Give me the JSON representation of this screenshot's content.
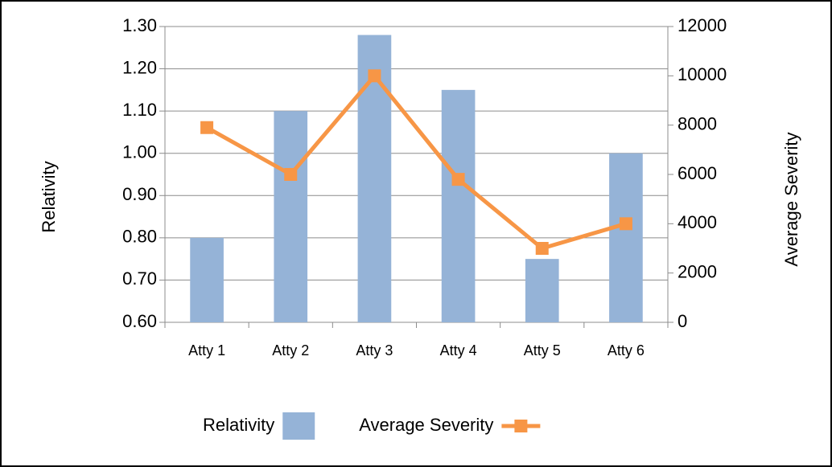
{
  "chart_data": {
    "type": "combo",
    "categories": [
      "Atty 1",
      "Atty 2",
      "Atty 3",
      "Atty 4",
      "Atty 5",
      "Atty 6"
    ],
    "y_label": "Relativity",
    "y2_label": "Average Severity",
    "series": [
      {
        "name": "Relativity",
        "type": "bar",
        "color": "#95b3d7",
        "values": [
          0.8,
          1.1,
          1.28,
          1.15,
          0.75,
          1.0
        ]
      },
      {
        "name": "Average Severity",
        "type": "line",
        "axis": "y2",
        "color": "#f79646",
        "values": [
          7900,
          6000,
          10000,
          5800,
          3000,
          4000
        ]
      }
    ],
    "ylim": [
      0.6,
      1.3
    ],
    "yticks": [
      {
        "value": 0.6,
        "label": "0.60"
      },
      {
        "value": 0.7,
        "label": "0.70"
      },
      {
        "value": 0.8,
        "label": "0.80"
      },
      {
        "value": 0.9,
        "label": "0.90"
      },
      {
        "value": 1.0,
        "label": "1.00"
      },
      {
        "value": 1.1,
        "label": "1.10"
      },
      {
        "value": 1.2,
        "label": "1.20"
      },
      {
        "value": 1.3,
        "label": "1.30"
      }
    ],
    "y2lim": [
      0,
      12000
    ],
    "y2ticks": [
      0,
      2000,
      4000,
      6000,
      8000,
      10000,
      12000
    ],
    "grid": true,
    "legend": "bottom"
  }
}
